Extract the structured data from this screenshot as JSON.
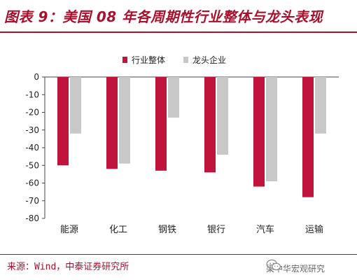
{
  "title": "图表 9：美国 08 年各周期性行业整体与龙头表现",
  "source": "来源：Wind，中泰证券研究所",
  "watermark": {
    "text": "梁中华宏观研究",
    "icon": "wechat-icon"
  },
  "colors": {
    "accent": "#a8112e",
    "series1": "#c0143c",
    "series2": "#c8c8c8",
    "axis": "#444444"
  },
  "chart_data": {
    "type": "bar",
    "categories": [
      "能源",
      "化工",
      "钢铁",
      "银行",
      "汽车",
      "运输"
    ],
    "series": [
      {
        "name": "行业整体",
        "values": [
          -50,
          -52,
          -53,
          -54,
          -62,
          -68
        ]
      },
      {
        "name": "龙头企业",
        "values": [
          -32,
          -49,
          -23,
          -44,
          -59,
          -32
        ]
      }
    ],
    "ylim": [
      -80,
      0
    ],
    "yticks": [
      0,
      -10,
      -20,
      -30,
      -40,
      -50,
      -60,
      -70,
      -80
    ],
    "legend": "top-center",
    "grid": false
  }
}
